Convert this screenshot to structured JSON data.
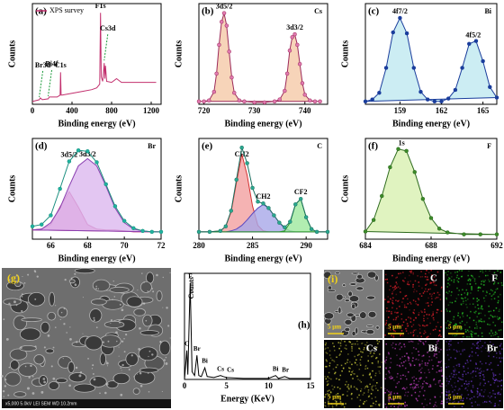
{
  "chart_data": [
    {
      "panel": "(a)",
      "type": "line",
      "xlabel": "Binding energy (eV)",
      "ylabel": "Counts",
      "xlim": [
        0,
        1300
      ],
      "xticks": [
        0,
        400,
        800,
        1200
      ],
      "ylim": [
        0,
        110
      ],
      "legend": "upper left",
      "x": [
        0,
        70,
        80,
        100,
        160,
        170,
        250,
        280,
        285,
        290,
        300,
        400,
        500,
        600,
        650,
        680,
        688,
        695,
        710,
        725,
        732,
        738,
        750,
        800,
        850,
        900,
        1000,
        1100,
        1200,
        1250
      ],
      "series": [
        {
          "name": "XPS survey",
          "color": "#c2306e",
          "values": [
            3,
            5,
            7,
            5,
            6,
            8,
            8,
            10,
            35,
            10,
            10,
            12,
            14,
            16,
            18,
            22,
            100,
            30,
            25,
            45,
            28,
            42,
            25,
            24,
            28,
            24,
            24,
            24,
            24,
            24
          ]
        }
      ],
      "labels": [
        {
          "text": "Br3d",
          "x": 69,
          "arrow": true
        },
        {
          "text": "Bi4f",
          "x": 159,
          "arrow": true
        },
        {
          "text": "C1s",
          "x": 285
        },
        {
          "text": "F1s",
          "x": 688
        },
        {
          "text": "Cs3d",
          "x": 725,
          "arrow": true
        }
      ]
    },
    {
      "panel": "(b)",
      "element": "Cs",
      "type": "line",
      "xlabel": "Binding energy (eV)",
      "ylabel": "Counts",
      "xlim": [
        719,
        744.5
      ],
      "xticks": [
        720,
        730,
        740
      ],
      "ylim": [
        0,
        105
      ],
      "x": [
        719,
        720,
        721,
        722,
        722.5,
        723,
        723.5,
        724,
        724.5,
        725,
        725.5,
        726,
        727,
        728,
        730,
        732,
        734,
        735,
        736,
        736.5,
        737,
        737.5,
        738,
        738.5,
        739,
        739.5,
        740,
        741,
        742,
        743
      ],
      "series": [
        {
          "color": "#9c2a5a",
          "fill": "#f5c9a8",
          "marker": "#e07ab0",
          "values": [
            3,
            3,
            4,
            13,
            32,
            62,
            86,
            95,
            82,
            55,
            28,
            12,
            4,
            3,
            2,
            2,
            3,
            5,
            14,
            32,
            56,
            70,
            73,
            62,
            42,
            22,
            10,
            4,
            3,
            3
          ]
        }
      ],
      "labels": [
        {
          "text": "3d5/2",
          "x": 724
        },
        {
          "text": "3d3/2",
          "x": 738
        }
      ]
    },
    {
      "panel": "(c)",
      "element": "Bi",
      "type": "line",
      "xlabel": "Binding energy (eV)",
      "ylabel": "Counts",
      "xlim": [
        156.5,
        166
      ],
      "xticks": [
        159,
        162,
        165
      ],
      "ylim": [
        0,
        105
      ],
      "x": [
        156.5,
        157,
        157.5,
        158,
        158.5,
        159,
        159.5,
        160,
        160.5,
        161,
        161.5,
        162,
        162.5,
        163,
        163.5,
        164,
        164.5,
        165,
        165.5,
        166
      ],
      "series": [
        {
          "color": "#1a3d9c",
          "fill": "#bfe8f0",
          "marker": "#1a3d9c",
          "values": [
            3,
            5,
            12,
            38,
            75,
            90,
            74,
            38,
            13,
            5,
            3,
            3,
            6,
            15,
            38,
            63,
            66,
            45,
            18,
            7
          ]
        }
      ],
      "labels": [
        {
          "text": "4f7/2",
          "x": 159
        },
        {
          "text": "4f5/2",
          "x": 164.3
        }
      ]
    },
    {
      "panel": "(d)",
      "element": "Br",
      "type": "line",
      "xlabel": "Binding energy (eV)",
      "ylabel": "Counts",
      "xlim": [
        65,
        72
      ],
      "xticks": [
        66,
        68,
        70,
        72
      ],
      "ylim": [
        0,
        110
      ],
      "x": [
        65,
        65.5,
        66,
        66.5,
        67,
        67.5,
        68,
        68.5,
        69,
        69.5,
        70,
        70.5,
        71,
        71.5,
        72
      ],
      "series": [
        {
          "name": "3d5/2",
          "color": "#c2307a",
          "fill": "#e77fb9",
          "values": [
            10,
            11,
            16,
            35,
            52,
            35,
            16,
            11,
            10,
            10,
            9,
            8,
            8,
            8,
            8
          ]
        },
        {
          "name": "3d3/2",
          "color": "#8a3fb0",
          "fill": "#dcb8ef",
          "values": [
            10,
            11,
            18,
            34,
            58,
            80,
            88,
            80,
            58,
            34,
            18,
            11,
            9,
            8,
            8
          ]
        },
        {
          "color": "#1b8f7f",
          "marker": "#1fb39f",
          "values": [
            14,
            16,
            26,
            55,
            85,
            97,
            96,
            84,
            60,
            36,
            20,
            12,
            9,
            8,
            8
          ]
        }
      ]
    },
    {
      "panel": "(e)",
      "element": "C",
      "type": "line",
      "xlabel": "Binding energy (eV)",
      "ylabel": "Counts",
      "xlim": [
        280,
        292
      ],
      "xticks": [
        280,
        285,
        290
      ],
      "ylim": [
        0,
        110
      ],
      "x": [
        280,
        281,
        282,
        282.5,
        283,
        283.5,
        284,
        284.5,
        285,
        285.5,
        286,
        286.5,
        287,
        287.5,
        288,
        288.5,
        289,
        289.5,
        290,
        290.5,
        291,
        292
      ],
      "series": [
        {
          "name": "CH2",
          "color": "#d33030",
          "fill": "#f3a0a0",
          "values": [
            8,
            8,
            9,
            14,
            30,
            62,
            93,
            70,
            36,
            15,
            9,
            8,
            8,
            8,
            8,
            8,
            8,
            8,
            8,
            8,
            8,
            8
          ]
        },
        {
          "name": "CH2",
          "color": "#5a48c0",
          "fill": "#a8a8e8",
          "values": [
            8,
            8,
            8,
            8,
            9,
            11,
            15,
            21,
            28,
            34,
            38,
            34,
            26,
            18,
            12,
            9,
            8,
            8,
            8,
            8,
            8,
            8
          ]
        },
        {
          "name": "CF2",
          "color": "#2a9a2a",
          "fill": "#9ee89e",
          "values": [
            8,
            8,
            8,
            8,
            8,
            8,
            8,
            8,
            8,
            8,
            8,
            8,
            8,
            8,
            9,
            18,
            38,
            44,
            24,
            11,
            8,
            8
          ]
        },
        {
          "color": "#1b6f5f",
          "marker": "#2aa88f",
          "values": [
            8,
            8,
            9,
            14,
            31,
            65,
            100,
            83,
            56,
            41,
            39,
            34,
            26,
            18,
            13,
            19,
            38,
            44,
            24,
            11,
            8,
            8
          ]
        }
      ]
    },
    {
      "panel": "(f)",
      "element": "F",
      "type": "line",
      "xlabel": "Binding energy (eV)",
      "ylabel": "Counts",
      "xlim": [
        684,
        692
      ],
      "xticks": [
        684,
        688,
        692
      ],
      "ylim": [
        0,
        105
      ],
      "x": [
        684,
        684.5,
        685,
        685.5,
        686,
        686.5,
        687,
        687.5,
        688,
        688.5,
        689,
        690,
        691,
        692
      ],
      "series": [
        {
          "color": "#2e6b1e",
          "fill": "#d8f0b0",
          "marker": "#3c8a2a",
          "values": [
            8,
            20,
            45,
            75,
            94,
            92,
            70,
            42,
            22,
            11,
            7,
            5,
            5,
            5
          ]
        }
      ],
      "labels": [
        {
          "text": "1s",
          "x": 686.2
        }
      ]
    },
    {
      "panel": "(h)",
      "type": "line",
      "xlabel": "Energy (KeV)",
      "ylabel": "Counts",
      "xlim": [
        0,
        15
      ],
      "xticks": [
        0,
        5,
        10,
        15
      ],
      "ylim": [
        0,
        110
      ],
      "x": [
        0,
        0.28,
        0.4,
        0.68,
        0.9,
        1.2,
        1.48,
        1.7,
        2.0,
        2.42,
        2.7,
        3.5,
        4.29,
        4.62,
        5,
        7,
        10,
        10.84,
        11.2,
        11.92,
        12.5,
        15
      ],
      "series": [
        {
          "color": "#000000",
          "values": [
            0,
            30,
            5,
            100,
            8,
            4,
            25,
            4,
            3,
            12,
            3,
            2,
            4,
            3,
            2,
            1,
            1,
            4,
            1,
            3,
            1,
            1
          ]
        }
      ],
      "labels": [
        {
          "text": "F",
          "x": 0.68
        },
        {
          "text": "C",
          "x": 0.28
        },
        {
          "text": "Br",
          "x": 1.48
        },
        {
          "text": "Bi",
          "x": 2.42
        },
        {
          "text": "Cs",
          "x": 4.29
        },
        {
          "text": "Cs",
          "x": 4.62
        },
        {
          "text": "Bi",
          "x": 10.84
        },
        {
          "text": "Br",
          "x": 11.92
        }
      ]
    }
  ],
  "sem_image": {
    "label": "(g)",
    "caption": "x5,000  5.0kV  LEI  SEM  WD 10.2mm"
  },
  "eds_maps": {
    "label": "(i)",
    "tiles": [
      {
        "scale_bar": "5 μm"
      },
      {
        "element": "C",
        "color": "#e0202c",
        "scale_bar": "5 μm"
      },
      {
        "element": "F",
        "color": "#28c828",
        "scale_bar": "5 μm"
      },
      {
        "element": "Cs",
        "color": "#c8c83a",
        "scale_bar": "5 μm"
      },
      {
        "element": "Bi",
        "color": "#c040c0",
        "scale_bar": "5 μm"
      },
      {
        "element": "Br",
        "color": "#6a38c8",
        "scale_bar": "5 μm"
      }
    ]
  }
}
